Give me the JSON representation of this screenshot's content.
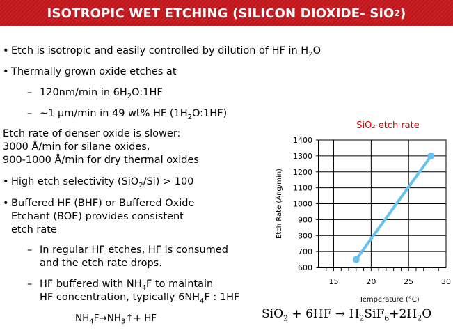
{
  "slide": {
    "title": {
      "main": "ISOTROPIC WET ETCHING (SILICON DIOXIDE- SiO",
      "sub": "2",
      "end": ")"
    },
    "bullet1": {
      "a": "Etch is isotropic and easily controlled by dilution of HF in H",
      "sub": "2",
      "b": "O"
    },
    "bullet2": "Thermally grown oxide etches at",
    "dash1": {
      "a": "120nm/min in 6H",
      "sub": "2",
      "b": "O:1HF"
    },
    "dash2": {
      "a": "~1 μm/min in 49 wt% HF (1H",
      "sub": "2",
      "b": "O:1HF)"
    },
    "dense": {
      "line1": "Etch rate of denser oxide is slower:",
      "line2": "3000 Å/min for silane oxides,",
      "line3": "900-1000 Å/min for dry thermal oxides"
    },
    "bullet3": {
      "a": "High etch selectivity (SiO",
      "sub": "2",
      "b": "/Si) > 100"
    },
    "bullet4": {
      "line1": "Buffered HF (BHF) or Buffered Oxide",
      "line2": "Etchant (BOE) provides consistent",
      "line3": "etch rate"
    },
    "dash3": {
      "line1": "In regular HF etches, HF is consumed",
      "line2": "and the etch rate drops."
    },
    "dash4": {
      "line1a": "HF buffered with NH",
      "line1sub": "4",
      "line1b": "F to maintain",
      "line2a": "HF concentration, typically 6NH",
      "line2sub": "4",
      "line2b": "F : 1HF"
    },
    "reaction": {
      "a": "NH",
      "sub1": "4",
      "b": "F→NH",
      "sub2": "3",
      "c": "↑+ HF"
    },
    "equation": {
      "t1": "SiO",
      "s1": "2",
      "t2": " + 6HF → H",
      "s2": "2",
      "t3": "SiF",
      "s3": "6",
      "t4": "+2H",
      "s4": "2",
      "t5": "O"
    }
  },
  "chart_data": {
    "type": "line",
    "title": "SiO₂ etch rate",
    "xlabel": "Temperature (°C)",
    "ylabel": "Etch Rate (Ang/min)",
    "xlim": [
      13,
      30
    ],
    "ylim": [
      600,
      1400
    ],
    "xticks": [
      "15",
      "20",
      "25",
      "30"
    ],
    "yticks": [
      "600",
      "700",
      "800",
      "900",
      "1000",
      "1100",
      "1200",
      "1300",
      "1400"
    ],
    "series": [
      {
        "x": [
          18,
          28
        ],
        "y": [
          650,
          1300
        ]
      }
    ],
    "grid": true,
    "colors": {
      "line": "#66c2ee",
      "title": "#cc0000"
    }
  }
}
